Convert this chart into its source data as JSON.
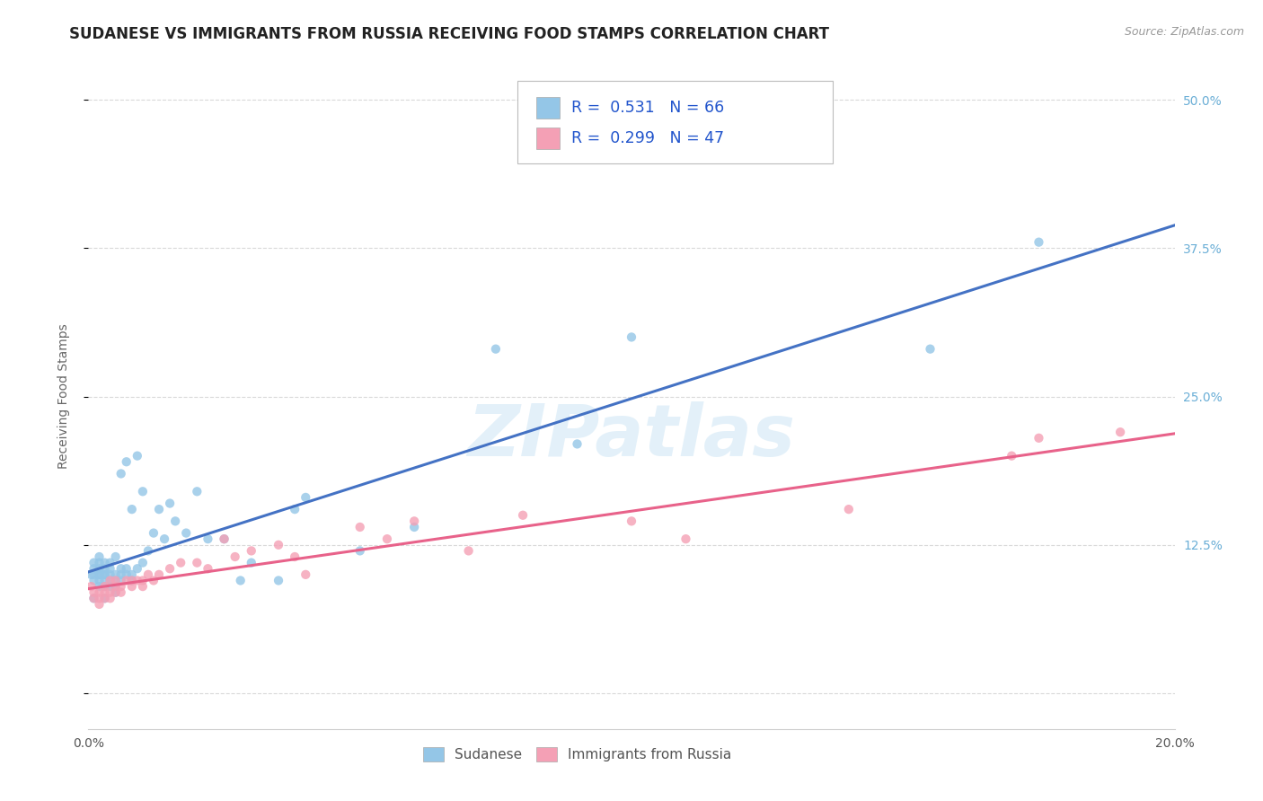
{
  "title": "SUDANESE VS IMMIGRANTS FROM RUSSIA RECEIVING FOOD STAMPS CORRELATION CHART",
  "source": "Source: ZipAtlas.com",
  "ylabel": "Receiving Food Stamps",
  "y_ticks": [
    0.0,
    0.125,
    0.25,
    0.375,
    0.5
  ],
  "y_tick_labels_right": [
    "",
    "12.5%",
    "25.0%",
    "37.5%",
    "50.0%"
  ],
  "xlim": [
    0.0,
    0.2
  ],
  "ylim": [
    -0.03,
    0.53
  ],
  "legend_label_1": "Sudanese",
  "legend_label_2": "Immigrants from Russia",
  "r1": 0.531,
  "n1": 66,
  "r2": 0.299,
  "n2": 47,
  "color_blue": "#94c6e7",
  "color_pink": "#f4a0b5",
  "line_color_blue": "#4472c4",
  "line_color_pink": "#e8628a",
  "background_color": "#ffffff",
  "grid_color": "#d9d9d9",
  "watermark": "ZIPatlas",
  "blue_scatter_x": [
    0.0005,
    0.001,
    0.001,
    0.001,
    0.001,
    0.001,
    0.002,
    0.002,
    0.002,
    0.002,
    0.002,
    0.002,
    0.002,
    0.003,
    0.003,
    0.003,
    0.003,
    0.003,
    0.003,
    0.003,
    0.004,
    0.004,
    0.004,
    0.004,
    0.004,
    0.005,
    0.005,
    0.005,
    0.005,
    0.005,
    0.006,
    0.006,
    0.006,
    0.006,
    0.007,
    0.007,
    0.007,
    0.008,
    0.008,
    0.008,
    0.009,
    0.009,
    0.01,
    0.01,
    0.011,
    0.012,
    0.013,
    0.014,
    0.015,
    0.016,
    0.018,
    0.02,
    0.022,
    0.025,
    0.028,
    0.03,
    0.035,
    0.038,
    0.04,
    0.05,
    0.06,
    0.075,
    0.09,
    0.1,
    0.155,
    0.175
  ],
  "blue_scatter_y": [
    0.1,
    0.08,
    0.095,
    0.1,
    0.105,
    0.11,
    0.09,
    0.095,
    0.1,
    0.1,
    0.105,
    0.11,
    0.115,
    0.08,
    0.09,
    0.095,
    0.1,
    0.1,
    0.105,
    0.11,
    0.09,
    0.095,
    0.1,
    0.105,
    0.11,
    0.085,
    0.09,
    0.095,
    0.1,
    0.115,
    0.095,
    0.1,
    0.105,
    0.185,
    0.1,
    0.105,
    0.195,
    0.095,
    0.1,
    0.155,
    0.105,
    0.2,
    0.11,
    0.17,
    0.12,
    0.135,
    0.155,
    0.13,
    0.16,
    0.145,
    0.135,
    0.17,
    0.13,
    0.13,
    0.095,
    0.11,
    0.095,
    0.155,
    0.165,
    0.12,
    0.14,
    0.29,
    0.21,
    0.3,
    0.29,
    0.38
  ],
  "pink_scatter_x": [
    0.0005,
    0.001,
    0.001,
    0.002,
    0.002,
    0.002,
    0.003,
    0.003,
    0.003,
    0.004,
    0.004,
    0.004,
    0.005,
    0.005,
    0.005,
    0.006,
    0.006,
    0.007,
    0.008,
    0.008,
    0.009,
    0.01,
    0.01,
    0.011,
    0.012,
    0.013,
    0.015,
    0.017,
    0.02,
    0.022,
    0.025,
    0.027,
    0.03,
    0.035,
    0.038,
    0.04,
    0.05,
    0.055,
    0.06,
    0.07,
    0.08,
    0.1,
    0.11,
    0.14,
    0.17,
    0.175,
    0.19
  ],
  "pink_scatter_y": [
    0.09,
    0.08,
    0.085,
    0.075,
    0.08,
    0.085,
    0.08,
    0.085,
    0.09,
    0.08,
    0.085,
    0.095,
    0.085,
    0.09,
    0.095,
    0.085,
    0.09,
    0.095,
    0.09,
    0.095,
    0.095,
    0.09,
    0.095,
    0.1,
    0.095,
    0.1,
    0.105,
    0.11,
    0.11,
    0.105,
    0.13,
    0.115,
    0.12,
    0.125,
    0.115,
    0.1,
    0.14,
    0.13,
    0.145,
    0.12,
    0.15,
    0.145,
    0.13,
    0.155,
    0.2,
    0.215,
    0.22
  ],
  "title_fontsize": 12,
  "axis_fontsize": 10,
  "tick_fontsize": 10
}
